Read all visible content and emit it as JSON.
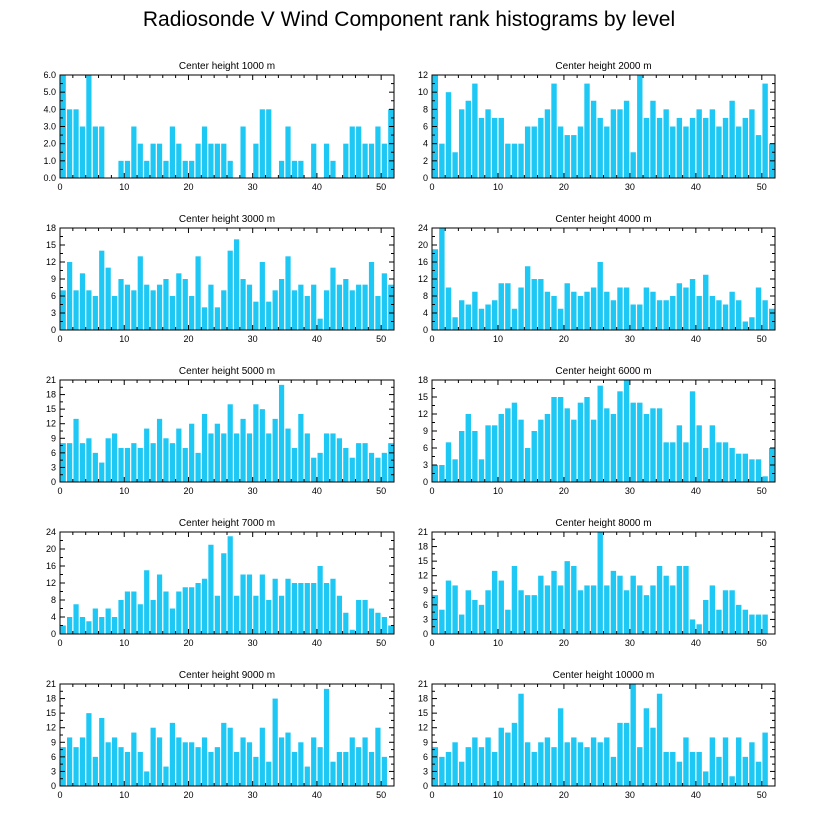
{
  "figure_title": "Radiosonde V Wind Component rank histograms by level",
  "bar_color": "#1ec8f5",
  "chart_data": [
    {
      "type": "bar",
      "title": "Center height 1000 m",
      "ylim": [
        0,
        6.0
      ],
      "yticks": [
        "0.0",
        "1.0",
        "2.0",
        "3.0",
        "4.0",
        "5.0",
        "6.0"
      ],
      "yticks_vals": [
        0,
        1,
        2,
        3,
        4,
        5,
        6
      ],
      "xlim": [
        0,
        52
      ],
      "xticks": [
        "0",
        "10",
        "20",
        "30",
        "40",
        "50"
      ],
      "values": [
        6,
        4,
        4,
        3,
        6,
        3,
        3,
        0,
        0,
        1,
        1,
        3,
        2,
        1,
        2,
        2,
        1,
        3,
        2,
        1,
        1,
        2,
        3,
        2,
        2,
        2,
        1,
        0,
        3,
        0,
        2,
        4,
        4,
        0,
        1,
        3,
        1,
        1,
        0,
        2,
        0,
        2,
        1,
        0,
        2,
        3,
        3,
        2,
        2,
        3,
        2,
        4
      ]
    },
    {
      "type": "bar",
      "title": "Center height 2000 m",
      "ylim": [
        0,
        12
      ],
      "yticks": [
        "0",
        "2",
        "4",
        "6",
        "8",
        "10",
        "12"
      ],
      "yticks_vals": [
        0,
        2,
        4,
        6,
        8,
        10,
        12
      ],
      "xlim": [
        0,
        52
      ],
      "xticks": [
        "0",
        "10",
        "20",
        "30",
        "40",
        "50"
      ],
      "values": [
        12,
        4,
        10,
        3,
        8,
        9,
        11,
        7,
        8,
        7,
        7,
        4,
        4,
        4,
        6,
        6,
        7,
        8,
        11,
        6,
        5,
        5,
        6,
        11,
        9,
        7,
        6,
        8,
        8,
        9,
        3,
        12,
        7,
        9,
        7,
        8,
        6,
        7,
        6,
        7,
        8,
        7,
        8,
        6,
        7,
        9,
        6,
        7,
        8,
        5,
        11,
        4
      ]
    },
    {
      "type": "bar",
      "title": "Center height 3000 m",
      "ylim": [
        0,
        18
      ],
      "yticks": [
        "0",
        "3",
        "6",
        "9",
        "12",
        "15",
        "18"
      ],
      "yticks_vals": [
        0,
        3,
        6,
        9,
        12,
        15,
        18
      ],
      "xlim": [
        0,
        52
      ],
      "xticks": [
        "0",
        "10",
        "20",
        "30",
        "40",
        "50"
      ],
      "values": [
        7,
        12,
        7,
        10,
        7,
        6,
        14,
        11,
        6,
        9,
        8,
        7,
        13,
        8,
        7,
        8,
        9,
        6,
        10,
        9,
        6,
        13,
        4,
        8,
        4,
        7,
        14,
        16,
        9,
        8,
        5,
        12,
        5,
        7,
        9,
        13,
        7,
        8,
        6,
        8,
        2,
        7,
        11,
        8,
        9,
        7,
        8,
        8,
        12,
        6,
        10,
        8
      ]
    },
    {
      "type": "bar",
      "title": "Center height 4000 m",
      "ylim": [
        0,
        24
      ],
      "yticks": [
        "0",
        "4",
        "8",
        "12",
        "16",
        "20",
        "24"
      ],
      "yticks_vals": [
        0,
        4,
        8,
        12,
        16,
        20,
        24
      ],
      "xlim": [
        0,
        52
      ],
      "xticks": [
        "0",
        "10",
        "20",
        "30",
        "40",
        "50"
      ],
      "values": [
        19,
        24,
        10,
        3,
        7,
        6,
        9,
        5,
        6,
        7,
        11,
        11,
        5,
        10,
        15,
        12,
        12,
        9,
        8,
        5,
        11,
        9,
        8,
        9,
        10,
        16,
        9,
        7,
        10,
        10,
        6,
        6,
        10,
        9,
        7,
        7,
        8,
        11,
        10,
        12,
        8,
        13,
        8,
        7,
        6,
        9,
        7,
        2,
        3,
        10,
        7,
        5
      ]
    },
    {
      "type": "bar",
      "title": "Center height 5000 m",
      "ylim": [
        0,
        21
      ],
      "yticks": [
        "0",
        "3",
        "6",
        "9",
        "12",
        "15",
        "18",
        "21"
      ],
      "yticks_vals": [
        0,
        3,
        6,
        9,
        12,
        15,
        18,
        21
      ],
      "xlim": [
        0,
        52
      ],
      "xticks": [
        "0",
        "10",
        "20",
        "30",
        "40",
        "50"
      ],
      "values": [
        8,
        8,
        13,
        8,
        9,
        6,
        4,
        9,
        10,
        7,
        7,
        8,
        7,
        11,
        8,
        13,
        9,
        8,
        11,
        7,
        12,
        6,
        14,
        10,
        12,
        10,
        16,
        10,
        13,
        10,
        16,
        15,
        10,
        13,
        20,
        11,
        7,
        14,
        10,
        5,
        6,
        10,
        10,
        9,
        7,
        5,
        8,
        8,
        6,
        5,
        6,
        8
      ]
    },
    {
      "type": "bar",
      "title": "Center height 6000 m",
      "ylim": [
        0,
        18
      ],
      "yticks": [
        "0",
        "3",
        "6",
        "9",
        "12",
        "15",
        "18"
      ],
      "yticks_vals": [
        0,
        3,
        6,
        9,
        12,
        15,
        18
      ],
      "xlim": [
        0,
        52
      ],
      "xticks": [
        "0",
        "10",
        "20",
        "30",
        "40",
        "50"
      ],
      "values": [
        3,
        3,
        7,
        4,
        9,
        12,
        9,
        4,
        10,
        10,
        12,
        13,
        14,
        11,
        6,
        9,
        11,
        12,
        15,
        15,
        13,
        11,
        14,
        15,
        11,
        17,
        13,
        12,
        16,
        18,
        14,
        14,
        12,
        13,
        13,
        7,
        7,
        10,
        7,
        16,
        10,
        6,
        10,
        7,
        7,
        6,
        5,
        5,
        4,
        4,
        1,
        6
      ]
    },
    {
      "type": "bar",
      "title": "Center height 7000 m",
      "ylim": [
        0,
        24
      ],
      "yticks": [
        "0",
        "4",
        "8",
        "12",
        "16",
        "20",
        "24"
      ],
      "yticks_vals": [
        0,
        4,
        8,
        12,
        16,
        20,
        24
      ],
      "xlim": [
        0,
        52
      ],
      "xticks": [
        "0",
        "10",
        "20",
        "30",
        "40",
        "50"
      ],
      "values": [
        2,
        4,
        7,
        4,
        3,
        6,
        4,
        6,
        4,
        8,
        10,
        10,
        7,
        15,
        8,
        14,
        10,
        6,
        10,
        11,
        11,
        12,
        13,
        21,
        9,
        19,
        23,
        9,
        14,
        14,
        9,
        14,
        8,
        13,
        9,
        13,
        12,
        12,
        12,
        12,
        16,
        12,
        13,
        9,
        5,
        1,
        8,
        8,
        6,
        5,
        4,
        2
      ]
    },
    {
      "type": "bar",
      "title": "Center height 8000 m",
      "ylim": [
        0,
        21
      ],
      "yticks": [
        "0",
        "3",
        "6",
        "9",
        "12",
        "15",
        "18",
        "21"
      ],
      "yticks_vals": [
        0,
        3,
        6,
        9,
        12,
        15,
        18,
        21
      ],
      "xlim": [
        0,
        52
      ],
      "xticks": [
        "0",
        "10",
        "20",
        "30",
        "40",
        "50"
      ],
      "values": [
        8,
        5,
        11,
        10,
        4,
        9,
        7,
        6,
        9,
        13,
        11,
        5,
        14,
        9,
        8,
        8,
        12,
        10,
        13,
        10,
        15,
        14,
        9,
        10,
        10,
        21,
        10,
        13,
        12,
        9,
        12,
        10,
        8,
        10,
        14,
        12,
        10,
        14,
        14,
        3,
        2,
        7,
        10,
        5,
        9,
        9,
        6,
        5,
        4,
        4,
        4,
        0
      ]
    },
    {
      "type": "bar",
      "title": "Center height 9000 m",
      "ylim": [
        0,
        21
      ],
      "yticks": [
        "0",
        "3",
        "6",
        "9",
        "12",
        "15",
        "18",
        "21"
      ],
      "yticks_vals": [
        0,
        3,
        6,
        9,
        12,
        15,
        18,
        21
      ],
      "xlim": [
        0,
        52
      ],
      "xticks": [
        "0",
        "10",
        "20",
        "30",
        "40",
        "50"
      ],
      "values": [
        8,
        10,
        8,
        10,
        15,
        6,
        14,
        9,
        10,
        8,
        7,
        11,
        7,
        3,
        12,
        10,
        4,
        13,
        10,
        9,
        9,
        8,
        10,
        7,
        8,
        13,
        12,
        7,
        10,
        9,
        6,
        12,
        5,
        18,
        10,
        11,
        7,
        9,
        4,
        10,
        8,
        20,
        5,
        7,
        7,
        10,
        8,
        10,
        7,
        12,
        6,
        0
      ]
    },
    {
      "type": "bar",
      "title": "Center height 10000 m",
      "ylim": [
        0,
        21
      ],
      "yticks": [
        "0",
        "3",
        "6",
        "9",
        "12",
        "15",
        "18",
        "21"
      ],
      "yticks_vals": [
        0,
        3,
        6,
        9,
        12,
        15,
        18,
        21
      ],
      "xlim": [
        0,
        52
      ],
      "xticks": [
        "0",
        "10",
        "20",
        "30",
        "40",
        "50"
      ],
      "values": [
        8,
        6,
        7,
        9,
        5,
        8,
        10,
        8,
        10,
        7,
        12,
        11,
        13,
        19,
        9,
        7,
        9,
        10,
        8,
        16,
        9,
        10,
        9,
        8,
        10,
        9,
        10,
        6,
        13,
        13,
        21,
        8,
        16,
        12,
        19,
        7,
        7,
        5,
        10,
        7,
        7,
        3,
        10,
        6,
        10,
        2,
        10,
        6,
        9,
        5,
        11,
        0
      ]
    }
  ]
}
